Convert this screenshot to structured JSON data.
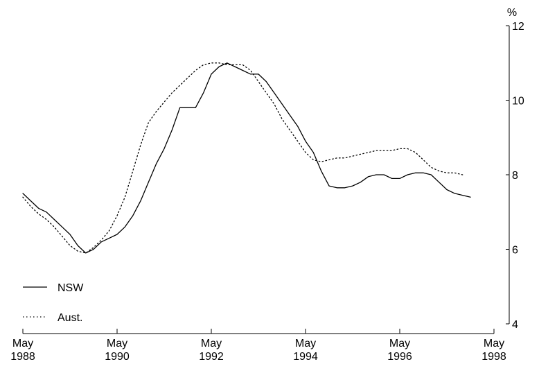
{
  "chart_data": {
    "type": "line",
    "unit_label": "%",
    "ylim": [
      4,
      12
    ],
    "y_ticks": [
      4,
      6,
      8,
      10,
      12
    ],
    "y_axis_side": "right",
    "grid": false,
    "legend_position": "bottom-left",
    "x_tick_labels": [
      {
        "month": "May",
        "year": "1988",
        "date": "1988-05"
      },
      {
        "month": "May",
        "year": "1990",
        "date": "1990-05"
      },
      {
        "month": "May",
        "year": "1992",
        "date": "1992-05"
      },
      {
        "month": "May",
        "year": "1994",
        "date": "1994-05"
      },
      {
        "month": "May",
        "year": "1996",
        "date": "1996-05"
      },
      {
        "month": "May",
        "year": "1998",
        "date": "1998-05"
      }
    ],
    "series": [
      {
        "name": "NSW",
        "style": "solid",
        "color": "#000000",
        "points": [
          [
            "1988-05",
            7.5
          ],
          [
            "1988-07",
            7.3
          ],
          [
            "1988-09",
            7.1
          ],
          [
            "1988-11",
            7.0
          ],
          [
            "1989-01",
            6.8
          ],
          [
            "1989-03",
            6.6
          ],
          [
            "1989-05",
            6.4
          ],
          [
            "1989-07",
            6.1
          ],
          [
            "1989-09",
            5.9
          ],
          [
            "1989-11",
            6.0
          ],
          [
            "1990-01",
            6.2
          ],
          [
            "1990-03",
            6.3
          ],
          [
            "1990-05",
            6.4
          ],
          [
            "1990-07",
            6.6
          ],
          [
            "1990-09",
            6.9
          ],
          [
            "1990-11",
            7.3
          ],
          [
            "1991-01",
            7.8
          ],
          [
            "1991-03",
            8.3
          ],
          [
            "1991-05",
            8.7
          ],
          [
            "1991-07",
            9.2
          ],
          [
            "1991-09",
            9.8
          ],
          [
            "1991-11",
            9.8
          ],
          [
            "1992-01",
            9.8
          ],
          [
            "1992-03",
            10.2
          ],
          [
            "1992-05",
            10.7
          ],
          [
            "1992-07",
            10.9
          ],
          [
            "1992-09",
            11.0
          ],
          [
            "1992-11",
            10.9
          ],
          [
            "1993-01",
            10.8
          ],
          [
            "1993-03",
            10.7
          ],
          [
            "1993-05",
            10.7
          ],
          [
            "1993-07",
            10.5
          ],
          [
            "1993-09",
            10.2
          ],
          [
            "1993-11",
            9.9
          ],
          [
            "1994-01",
            9.6
          ],
          [
            "1994-03",
            9.3
          ],
          [
            "1994-05",
            8.9
          ],
          [
            "1994-07",
            8.6
          ],
          [
            "1994-09",
            8.1
          ],
          [
            "1994-11",
            7.7
          ],
          [
            "1995-01",
            7.65
          ],
          [
            "1995-03",
            7.65
          ],
          [
            "1995-05",
            7.7
          ],
          [
            "1995-07",
            7.8
          ],
          [
            "1995-09",
            7.95
          ],
          [
            "1995-11",
            8.0
          ],
          [
            "1996-01",
            8.0
          ],
          [
            "1996-03",
            7.9
          ],
          [
            "1996-05",
            7.9
          ],
          [
            "1996-07",
            8.0
          ],
          [
            "1996-09",
            8.05
          ],
          [
            "1996-11",
            8.05
          ],
          [
            "1997-01",
            8.0
          ],
          [
            "1997-03",
            7.8
          ],
          [
            "1997-05",
            7.6
          ],
          [
            "1997-07",
            7.5
          ],
          [
            "1997-09",
            7.45
          ],
          [
            "1997-11",
            7.4
          ]
        ]
      },
      {
        "name": "Aust.",
        "style": "dotted",
        "color": "#000000",
        "points": [
          [
            "1988-05",
            7.4
          ],
          [
            "1988-07",
            7.15
          ],
          [
            "1988-09",
            6.95
          ],
          [
            "1988-11",
            6.8
          ],
          [
            "1989-01",
            6.6
          ],
          [
            "1989-03",
            6.35
          ],
          [
            "1989-05",
            6.1
          ],
          [
            "1989-07",
            5.95
          ],
          [
            "1989-09",
            5.9
          ],
          [
            "1989-11",
            6.05
          ],
          [
            "1990-01",
            6.25
          ],
          [
            "1990-03",
            6.5
          ],
          [
            "1990-05",
            6.9
          ],
          [
            "1990-07",
            7.4
          ],
          [
            "1990-09",
            8.1
          ],
          [
            "1990-11",
            8.8
          ],
          [
            "1991-01",
            9.4
          ],
          [
            "1991-03",
            9.7
          ],
          [
            "1991-05",
            9.95
          ],
          [
            "1991-07",
            10.2
          ],
          [
            "1991-09",
            10.4
          ],
          [
            "1991-11",
            10.6
          ],
          [
            "1992-01",
            10.8
          ],
          [
            "1992-03",
            10.95
          ],
          [
            "1992-05",
            11.0
          ],
          [
            "1992-07",
            11.0
          ],
          [
            "1992-09",
            10.95
          ],
          [
            "1992-11",
            10.95
          ],
          [
            "1993-01",
            10.95
          ],
          [
            "1993-03",
            10.8
          ],
          [
            "1993-05",
            10.5
          ],
          [
            "1993-07",
            10.2
          ],
          [
            "1993-09",
            9.9
          ],
          [
            "1993-11",
            9.5
          ],
          [
            "1994-01",
            9.2
          ],
          [
            "1994-03",
            8.9
          ],
          [
            "1994-05",
            8.6
          ],
          [
            "1994-07",
            8.4
          ],
          [
            "1994-09",
            8.35
          ],
          [
            "1994-11",
            8.4
          ],
          [
            "1995-01",
            8.45
          ],
          [
            "1995-03",
            8.45
          ],
          [
            "1995-05",
            8.5
          ],
          [
            "1995-07",
            8.55
          ],
          [
            "1995-09",
            8.6
          ],
          [
            "1995-11",
            8.65
          ],
          [
            "1996-01",
            8.65
          ],
          [
            "1996-03",
            8.65
          ],
          [
            "1996-05",
            8.7
          ],
          [
            "1996-07",
            8.7
          ],
          [
            "1996-09",
            8.6
          ],
          [
            "1996-11",
            8.4
          ],
          [
            "1997-01",
            8.2
          ],
          [
            "1997-03",
            8.1
          ],
          [
            "1997-05",
            8.05
          ],
          [
            "1997-07",
            8.05
          ],
          [
            "1997-09",
            8.0
          ]
        ]
      }
    ]
  }
}
